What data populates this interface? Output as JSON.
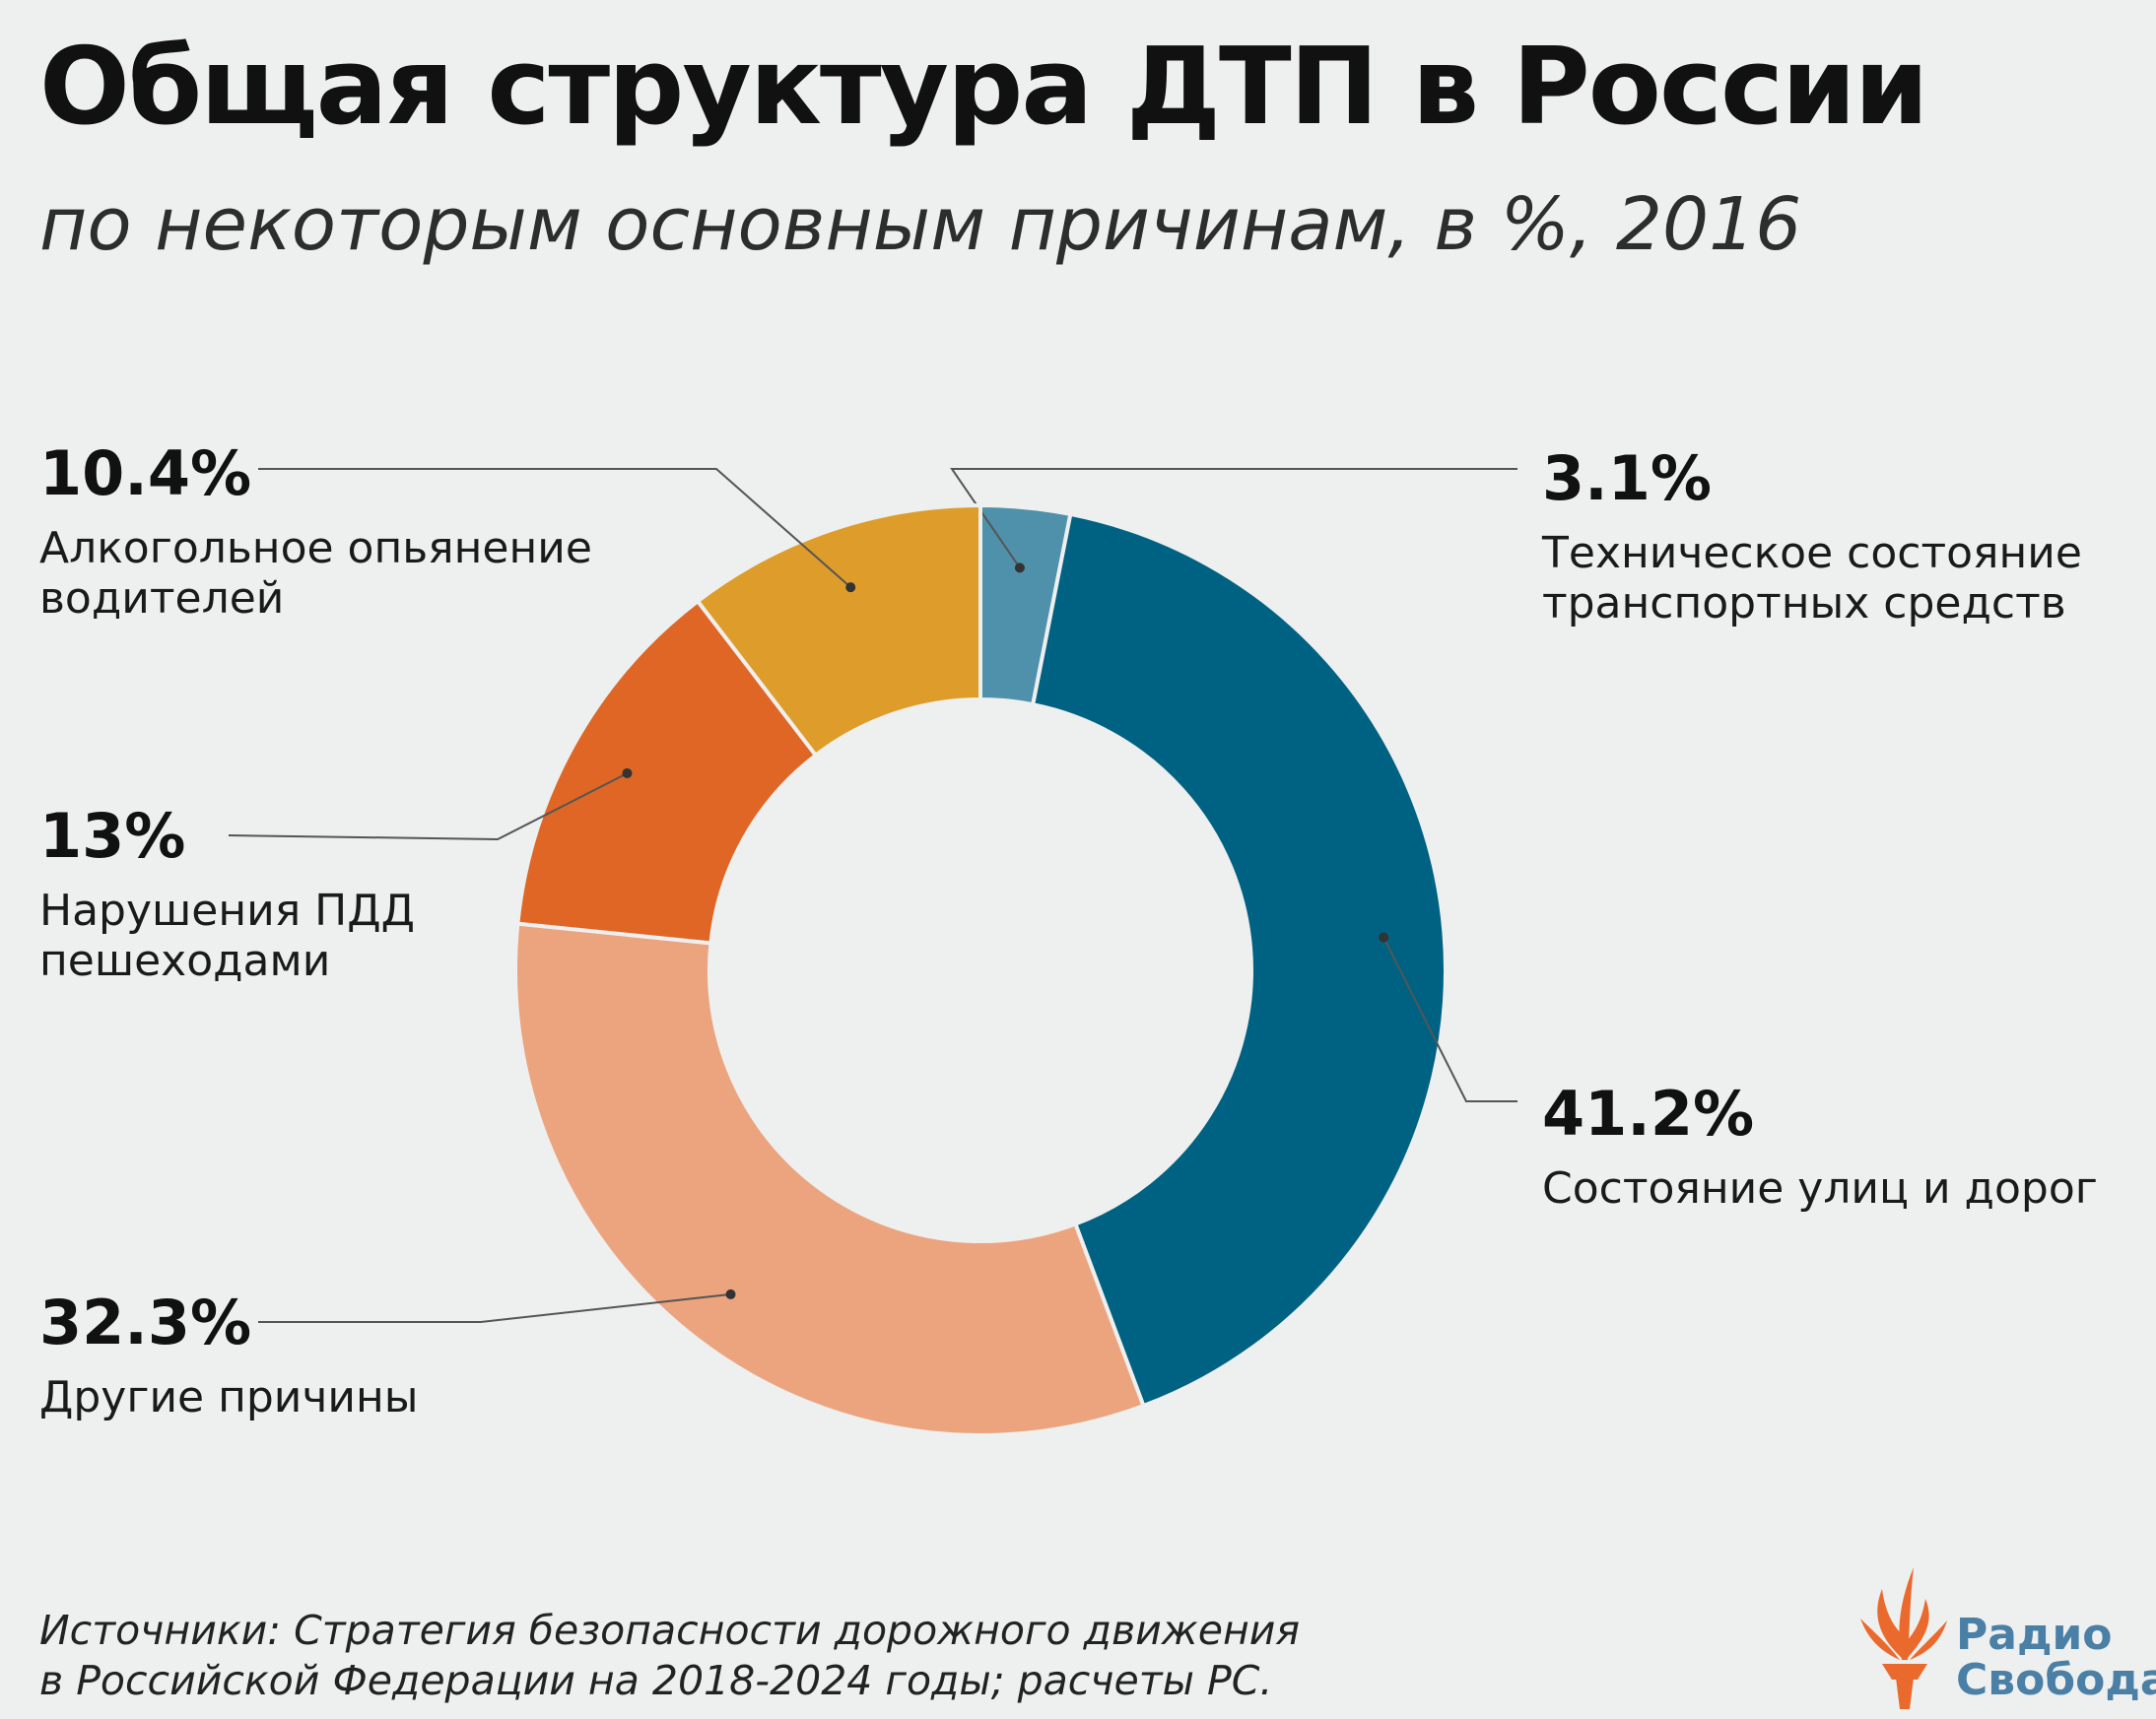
{
  "title": "Общая структура ДТП в России",
  "subtitle": "по некоторым основным причинам, в %, 2016",
  "chart_data": {
    "type": "pie",
    "donut": true,
    "title": "Общая структура ДТП в России",
    "subtitle": "по некоторым основным причинам, в %, 2016",
    "slices": [
      {
        "label": "Техническое состояние транспортных средств",
        "label_lines": "Техническое состояние\nтранспортных средств",
        "value": 3.1,
        "display": "3.1%",
        "color": "#4f90aa",
        "side": "right"
      },
      {
        "label": "Состояние улиц и дорог",
        "label_lines": "Состояние улиц и дорог",
        "value": 41.2,
        "display": "41.2%",
        "color": "#006282",
        "side": "right"
      },
      {
        "label": "Другие причины",
        "label_lines": "Другие причины",
        "value": 32.3,
        "display": "32.3%",
        "color": "#eca47f",
        "side": "left"
      },
      {
        "label": "Нарушения ПДД пешеходами",
        "label_lines": "Нарушения ПДД\nпешеходами",
        "value": 13,
        "display": "13%",
        "color": "#df6625",
        "side": "left"
      },
      {
        "label": "Алкогольное опьянение водителей",
        "label_lines": "Алкогольное опьянение\nводителей",
        "value": 10.4,
        "display": "10.4%",
        "color": "#de9d2a",
        "side": "left"
      }
    ],
    "legend": "none"
  },
  "source": "Источники: Стратегия безопасности дорожного движения\nв Российской Федерации на 2018-2024 годы; расчеты РС.",
  "logo": {
    "text": "Радио\nСвобода",
    "color": "#4a7fa6",
    "accent": "#ea6a2e"
  }
}
